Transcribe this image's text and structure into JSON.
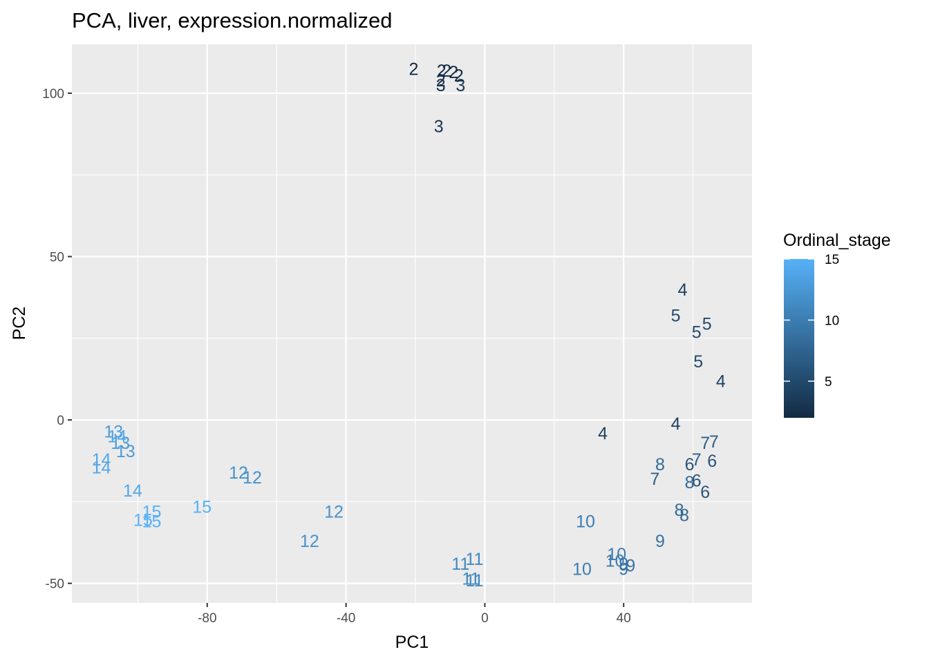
{
  "chart_data": {
    "type": "scatter",
    "title": "PCA, liver, expression.normalized",
    "xlabel": "PC1",
    "ylabel": "PC2",
    "xlim": [
      -119,
      77
    ],
    "ylim": [
      -56,
      115
    ],
    "xticks": [
      -80,
      -40,
      0,
      40
    ],
    "yticks": [
      -50,
      0,
      50,
      100
    ],
    "grid": true,
    "legend": {
      "title": "Ordinal_stage",
      "position": "right",
      "range": [
        2,
        15
      ],
      "ticks": [
        5,
        10,
        15
      ],
      "color_low": "#132B43",
      "color_high": "#56B1F7"
    },
    "points": [
      {
        "x": -20.5,
        "y": 107.5,
        "label": "2",
        "stage": 2
      },
      {
        "x": -12.5,
        "y": 107.0,
        "label": "2",
        "stage": 2
      },
      {
        "x": -11.0,
        "y": 107.0,
        "label": "2",
        "stage": 2
      },
      {
        "x": -9.0,
        "y": 106.5,
        "label": "2",
        "stage": 2
      },
      {
        "x": -7.5,
        "y": 105.5,
        "label": "2",
        "stage": 2
      },
      {
        "x": -12.7,
        "y": 104.0,
        "label": "2",
        "stage": 2
      },
      {
        "x": -12.7,
        "y": 102.5,
        "label": "3",
        "stage": 3
      },
      {
        "x": -7.0,
        "y": 102.5,
        "label": "3",
        "stage": 3
      },
      {
        "x": -13.3,
        "y": 90.0,
        "label": "3",
        "stage": 3
      },
      {
        "x": 57.0,
        "y": 40.0,
        "label": "4",
        "stage": 4
      },
      {
        "x": 68.0,
        "y": 12.0,
        "label": "4",
        "stage": 4
      },
      {
        "x": 55.0,
        "y": -1.0,
        "label": "4",
        "stage": 4
      },
      {
        "x": 34.0,
        "y": -4.0,
        "label": "4",
        "stage": 4
      },
      {
        "x": 55.0,
        "y": 32.0,
        "label": "5",
        "stage": 5
      },
      {
        "x": 64.0,
        "y": 29.5,
        "label": "5",
        "stage": 5
      },
      {
        "x": 61.0,
        "y": 27.0,
        "label": "5",
        "stage": 5
      },
      {
        "x": 61.5,
        "y": 18.0,
        "label": "5",
        "stage": 5
      },
      {
        "x": 59.0,
        "y": -13.5,
        "label": "6",
        "stage": 6
      },
      {
        "x": 65.5,
        "y": -12.5,
        "label": "6",
        "stage": 6
      },
      {
        "x": 61.0,
        "y": -18.5,
        "label": "6",
        "stage": 6
      },
      {
        "x": 63.5,
        "y": -22.0,
        "label": "6",
        "stage": 6
      },
      {
        "x": 66.0,
        "y": -6.5,
        "label": "7",
        "stage": 7
      },
      {
        "x": 63.5,
        "y": -7.0,
        "label": "7",
        "stage": 7
      },
      {
        "x": 61.0,
        "y": -12.0,
        "label": "7",
        "stage": 7
      },
      {
        "x": 49.0,
        "y": -18.0,
        "label": "7",
        "stage": 7
      },
      {
        "x": 50.5,
        "y": -13.5,
        "label": "8",
        "stage": 8
      },
      {
        "x": 59.0,
        "y": -19.0,
        "label": "8",
        "stage": 8
      },
      {
        "x": 56.0,
        "y": -27.5,
        "label": "8",
        "stage": 8
      },
      {
        "x": 57.5,
        "y": -29.0,
        "label": "8",
        "stage": 8
      },
      {
        "x": 50.5,
        "y": -37.0,
        "label": "9",
        "stage": 9
      },
      {
        "x": 40.0,
        "y": -44.0,
        "label": "9",
        "stage": 9
      },
      {
        "x": 42.0,
        "y": -44.5,
        "label": "9",
        "stage": 9
      },
      {
        "x": 40.0,
        "y": -45.5,
        "label": "9",
        "stage": 9
      },
      {
        "x": 29.0,
        "y": -31.0,
        "label": "10",
        "stage": 10
      },
      {
        "x": 38.0,
        "y": -41.0,
        "label": "10",
        "stage": 10
      },
      {
        "x": 37.5,
        "y": -43.0,
        "label": "10",
        "stage": 10
      },
      {
        "x": 28.0,
        "y": -45.5,
        "label": "10",
        "stage": 10
      },
      {
        "x": -7.0,
        "y": -44.0,
        "label": "11",
        "stage": 11
      },
      {
        "x": -3.0,
        "y": -42.5,
        "label": "11",
        "stage": 11
      },
      {
        "x": -4.0,
        "y": -48.5,
        "label": "11",
        "stage": 11
      },
      {
        "x": -3.0,
        "y": -49.0,
        "label": "11",
        "stage": 11
      },
      {
        "x": -71.0,
        "y": -16.0,
        "label": "12",
        "stage": 12
      },
      {
        "x": -67.0,
        "y": -17.5,
        "label": "12",
        "stage": 12
      },
      {
        "x": -43.5,
        "y": -28.0,
        "label": "12",
        "stage": 12
      },
      {
        "x": -50.5,
        "y": -37.0,
        "label": "12",
        "stage": 12
      },
      {
        "x": -107.0,
        "y": -3.5,
        "label": "13",
        "stage": 13
      },
      {
        "x": -105.0,
        "y": -7.0,
        "label": "13",
        "stage": 13
      },
      {
        "x": -103.5,
        "y": -9.5,
        "label": "13",
        "stage": 13
      },
      {
        "x": -106.0,
        "y": -5.0,
        "label": "14",
        "stage": 14
      },
      {
        "x": -110.5,
        "y": -12.0,
        "label": "14",
        "stage": 14
      },
      {
        "x": -110.5,
        "y": -14.5,
        "label": "14",
        "stage": 14
      },
      {
        "x": -101.5,
        "y": -21.5,
        "label": "14",
        "stage": 14
      },
      {
        "x": -81.5,
        "y": -26.5,
        "label": "15",
        "stage": 15
      },
      {
        "x": -96.0,
        "y": -28.0,
        "label": "15",
        "stage": 15
      },
      {
        "x": -98.5,
        "y": -30.5,
        "label": "15",
        "stage": 15
      },
      {
        "x": -96.0,
        "y": -31.0,
        "label": "15",
        "stage": 15
      }
    ]
  }
}
